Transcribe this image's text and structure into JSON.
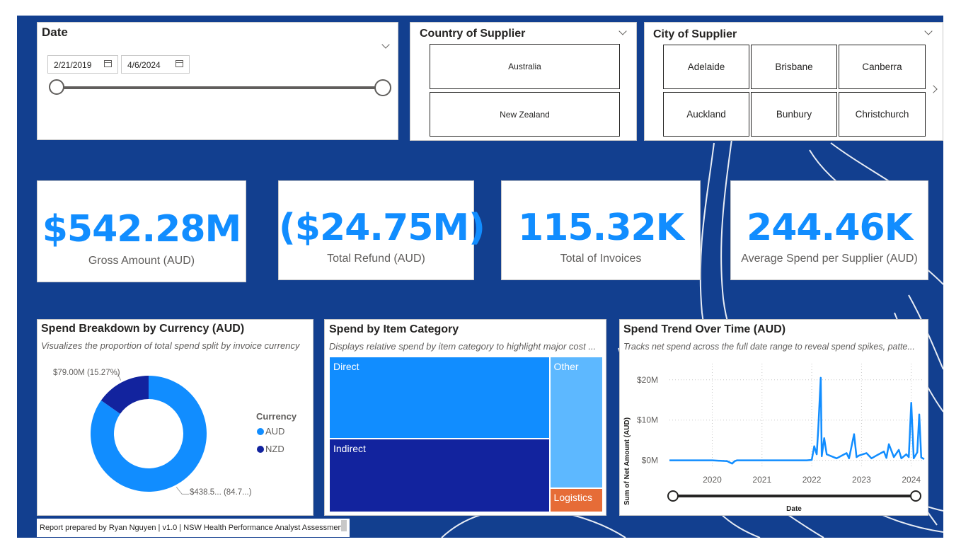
{
  "date_slicer": {
    "title": "Date",
    "start": "2/21/2019",
    "end": "4/6/2024",
    "range": [
      0,
      1
    ]
  },
  "country_slicer": {
    "title": "Country of Supplier",
    "options": [
      "Australia",
      "New Zealand"
    ]
  },
  "city_slicer": {
    "title": "City of Supplier",
    "options": [
      "Adelaide",
      "Brisbane",
      "Canberra",
      "Auckland",
      "Bunbury",
      "Christchurch"
    ]
  },
  "kpis": [
    {
      "value": "$542.28M",
      "label": "Gross Amount (AUD)"
    },
    {
      "value": "($24.75M)",
      "label": "Total Refund (AUD)"
    },
    {
      "value": "115.32K",
      "label": "Total of Invoices"
    },
    {
      "value": "244.46K",
      "label": "Average Spend per Supplier (AUD)"
    }
  ],
  "currency_chart": {
    "title": "Spend Breakdown by Currency (AUD)",
    "subtitle": "Visualizes the proportion of total spend split by invoice currency",
    "legend_title": "Currency",
    "chart_data": {
      "type": "pie",
      "variant": "donut",
      "categories": [
        "AUD",
        "NZD"
      ],
      "values": [
        84.73,
        15.27
      ],
      "data_labels": [
        "$438.5... (84.7...)",
        "$79.00M (15.27%)"
      ],
      "colors": [
        "#118dff",
        "#12239e"
      ],
      "legend": "right"
    }
  },
  "category_chart": {
    "title": "Spend by Item Category",
    "subtitle": "Displays relative spend by item category to highlight major cost ...",
    "chart_data": {
      "type": "treemap",
      "categories": [
        "Direct",
        "Indirect",
        "Other",
        "Logistics"
      ],
      "values": [
        0.425,
        0.38,
        0.165,
        0.03
      ],
      "colors": [
        "#118dff",
        "#12239e",
        "#5db8ff",
        "#e66c37"
      ]
    }
  },
  "trend_chart": {
    "title": "Spend Trend Over Time (AUD)",
    "subtitle": "Tracks net spend across the full date range to reveal spend spikes, patte...",
    "chart_data": {
      "type": "line",
      "xlabel": "Date",
      "ylabel": "Sum of Net Amount (AUD)",
      "x_ticks": [
        "2020",
        "2021",
        "2022",
        "2023",
        "2024"
      ],
      "y_ticks": [
        "$0M",
        "$10M",
        "$20M"
      ],
      "ylim": [
        -2,
        24
      ],
      "xlim": [
        2019.14,
        2024.26
      ],
      "grid": true,
      "color": "#118dff",
      "series": [
        {
          "x": [
            2019.14,
            2019.6,
            2020.0,
            2020.3,
            2020.4,
            2020.45,
            2020.5,
            2020.8,
            2021.0,
            2021.5,
            2021.9,
            2022.0,
            2022.05,
            2022.1,
            2022.13,
            2022.18,
            2022.2,
            2022.25,
            2022.3,
            2022.5,
            2022.7,
            2022.75,
            2022.85,
            2022.9,
            2022.95,
            2023.1,
            2023.2,
            2023.3,
            2023.45,
            2023.5,
            2023.55,
            2023.65,
            2023.75,
            2023.8,
            2023.9,
            2023.95,
            2024.0,
            2024.05,
            2024.12,
            2024.16,
            2024.2,
            2024.26
          ],
          "y": [
            0,
            0,
            0,
            -0.2,
            -0.8,
            -0.2,
            0,
            0,
            0,
            0,
            0,
            0.1,
            3.5,
            1.5,
            7.5,
            20.5,
            1.0,
            5.5,
            1.5,
            0.5,
            1.8,
            0.5,
            6.5,
            0.8,
            1.2,
            1.8,
            0.5,
            1.2,
            2.2,
            0.6,
            4.0,
            0.8,
            2.6,
            0.5,
            1.5,
            0.8,
            14.3,
            0.5,
            2.0,
            11.4,
            0.7,
            0.3
          ]
        }
      ]
    }
  },
  "footer": {
    "text": "Report prepared by Ryan Nguyen | v1.0 | NSW Health Performance Analyst Assessment"
  }
}
